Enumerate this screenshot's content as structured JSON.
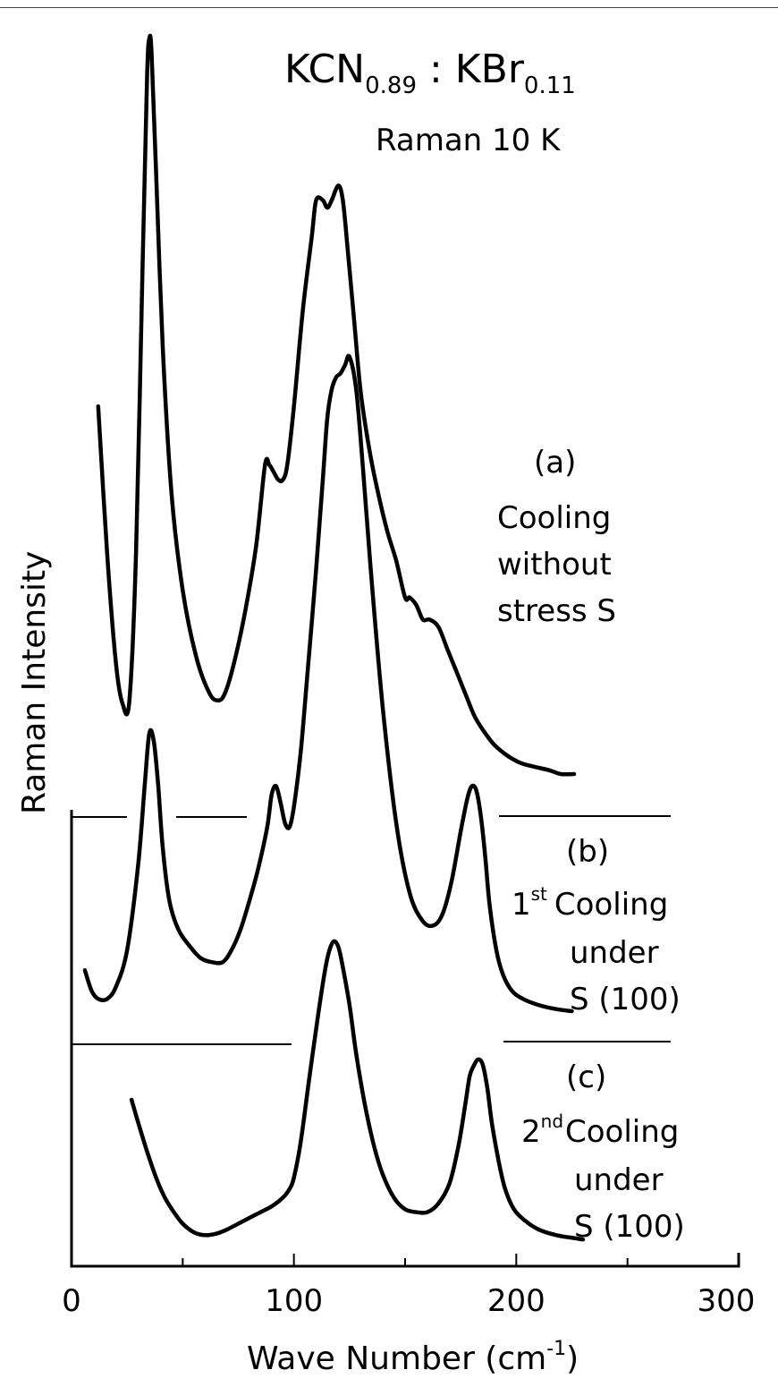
{
  "chart_data": {
    "type": "line",
    "title_main": "KCN",
    "title_main_sub": "0.89",
    "title_sep": " : ",
    "title_second": "KBr",
    "title_second_sub": "0.11",
    "subtitle": "Raman 10 K",
    "xlabel_main": "Wave Number (cm",
    "xlabel_sup": "-1",
    "xlabel_close": ")",
    "ylabel": "Raman Intensity",
    "xlim": [
      0,
      300
    ],
    "x_ticks": [
      0,
      100,
      200,
      300
    ],
    "x_ticklabels": [
      "0",
      "100",
      "200",
      "300"
    ],
    "y_units": "arbitrary (curves vertically offset, no numeric scale)",
    "curve_color": "#000000",
    "series": [
      {
        "label_lines": [
          "(a)",
          "Cooling",
          "without",
          "stress S"
        ],
        "baseline": null,
        "x": [
          12,
          16,
          20,
          23,
          26,
          29,
          32,
          34,
          35,
          36,
          38,
          41,
          45,
          50,
          56,
          62,
          66,
          69,
          73,
          78,
          83,
          87,
          89,
          91,
          93,
          95,
          97,
          100,
          104,
          108,
          110,
          113,
          115,
          117,
          120,
          122,
          124,
          127,
          130,
          134,
          138,
          142,
          146,
          150,
          152,
          155,
          158,
          161,
          165,
          169,
          173,
          177,
          181,
          185,
          190,
          196,
          202,
          208,
          215,
          220,
          226
        ],
        "y": [
          0.5,
          0.3,
          0.15,
          0.095,
          0.1,
          0.3,
          0.7,
          0.95,
          1.0,
          0.98,
          0.82,
          0.58,
          0.38,
          0.25,
          0.16,
          0.11,
          0.1,
          0.11,
          0.15,
          0.22,
          0.31,
          0.42,
          0.42,
          0.41,
          0.4,
          0.4,
          0.42,
          0.5,
          0.63,
          0.73,
          0.78,
          0.78,
          0.77,
          0.78,
          0.8,
          0.78,
          0.72,
          0.62,
          0.52,
          0.44,
          0.38,
          0.33,
          0.29,
          0.24,
          0.24,
          0.23,
          0.21,
          0.21,
          0.2,
          0.17,
          0.14,
          0.11,
          0.08,
          0.06,
          0.04,
          0.025,
          0.015,
          0.01,
          0.005,
          0.0,
          0.0
        ]
      },
      {
        "label_lines": [
          "(b)",
          "1",
          "Cooling",
          "under",
          "S (100)"
        ],
        "label_sup": "st",
        "baseline": "horizontal reference segments",
        "x": [
          6,
          9,
          12,
          16,
          20,
          25,
          30,
          33,
          35,
          37,
          39,
          41,
          44,
          48,
          53,
          58,
          63,
          68,
          72,
          76,
          80,
          84,
          88,
          90,
          92,
          94,
          96,
          98,
          100,
          103,
          106,
          110,
          113,
          115,
          117,
          119,
          121,
          123,
          125,
          128,
          131,
          135,
          140,
          146,
          152,
          158,
          163,
          167,
          171,
          175,
          178,
          180,
          182,
          184,
          186,
          188,
          191,
          194,
          198,
          203,
          210,
          218,
          225
        ],
        "y": [
          0.1,
          0.05,
          0.03,
          0.03,
          0.06,
          0.15,
          0.36,
          0.56,
          0.68,
          0.66,
          0.55,
          0.4,
          0.27,
          0.2,
          0.16,
          0.13,
          0.12,
          0.12,
          0.15,
          0.2,
          0.27,
          0.35,
          0.45,
          0.53,
          0.55,
          0.51,
          0.46,
          0.45,
          0.5,
          0.63,
          0.82,
          1.08,
          1.3,
          1.45,
          1.52,
          1.55,
          1.56,
          1.58,
          1.6,
          1.52,
          1.33,
          1.05,
          0.74,
          0.46,
          0.29,
          0.22,
          0.21,
          0.24,
          0.32,
          0.44,
          0.52,
          0.55,
          0.54,
          0.48,
          0.38,
          0.26,
          0.15,
          0.09,
          0.05,
          0.03,
          0.015,
          0.005,
          0.0
        ]
      },
      {
        "label_lines": [
          "(c)",
          "2",
          "Cooling",
          "under",
          "S (100)"
        ],
        "label_sup": "nd",
        "baseline": "horizontal reference segments",
        "x": [
          27,
          30,
          34,
          38,
          42,
          46,
          50,
          55,
          60,
          65,
          70,
          75,
          80,
          85,
          90,
          95,
          98,
          100,
          103,
          107,
          111,
          114,
          116,
          118,
          120,
          122,
          125,
          128,
          132,
          136,
          140,
          145,
          150,
          155,
          160,
          165,
          170,
          174,
          177,
          179,
          181,
          183,
          185,
          187,
          189,
          192,
          195,
          199,
          204,
          210,
          218,
          226,
          230
        ],
        "y": [
          0.5,
          0.42,
          0.32,
          0.23,
          0.16,
          0.11,
          0.07,
          0.04,
          0.03,
          0.035,
          0.05,
          0.07,
          0.09,
          0.11,
          0.13,
          0.16,
          0.19,
          0.23,
          0.35,
          0.58,
          0.8,
          0.95,
          1.02,
          1.05,
          1.03,
          0.96,
          0.83,
          0.66,
          0.48,
          0.34,
          0.24,
          0.16,
          0.12,
          0.11,
          0.11,
          0.14,
          0.21,
          0.34,
          0.48,
          0.58,
          0.62,
          0.64,
          0.62,
          0.54,
          0.42,
          0.29,
          0.19,
          0.12,
          0.08,
          0.05,
          0.03,
          0.02,
          0.015
        ]
      }
    ]
  }
}
